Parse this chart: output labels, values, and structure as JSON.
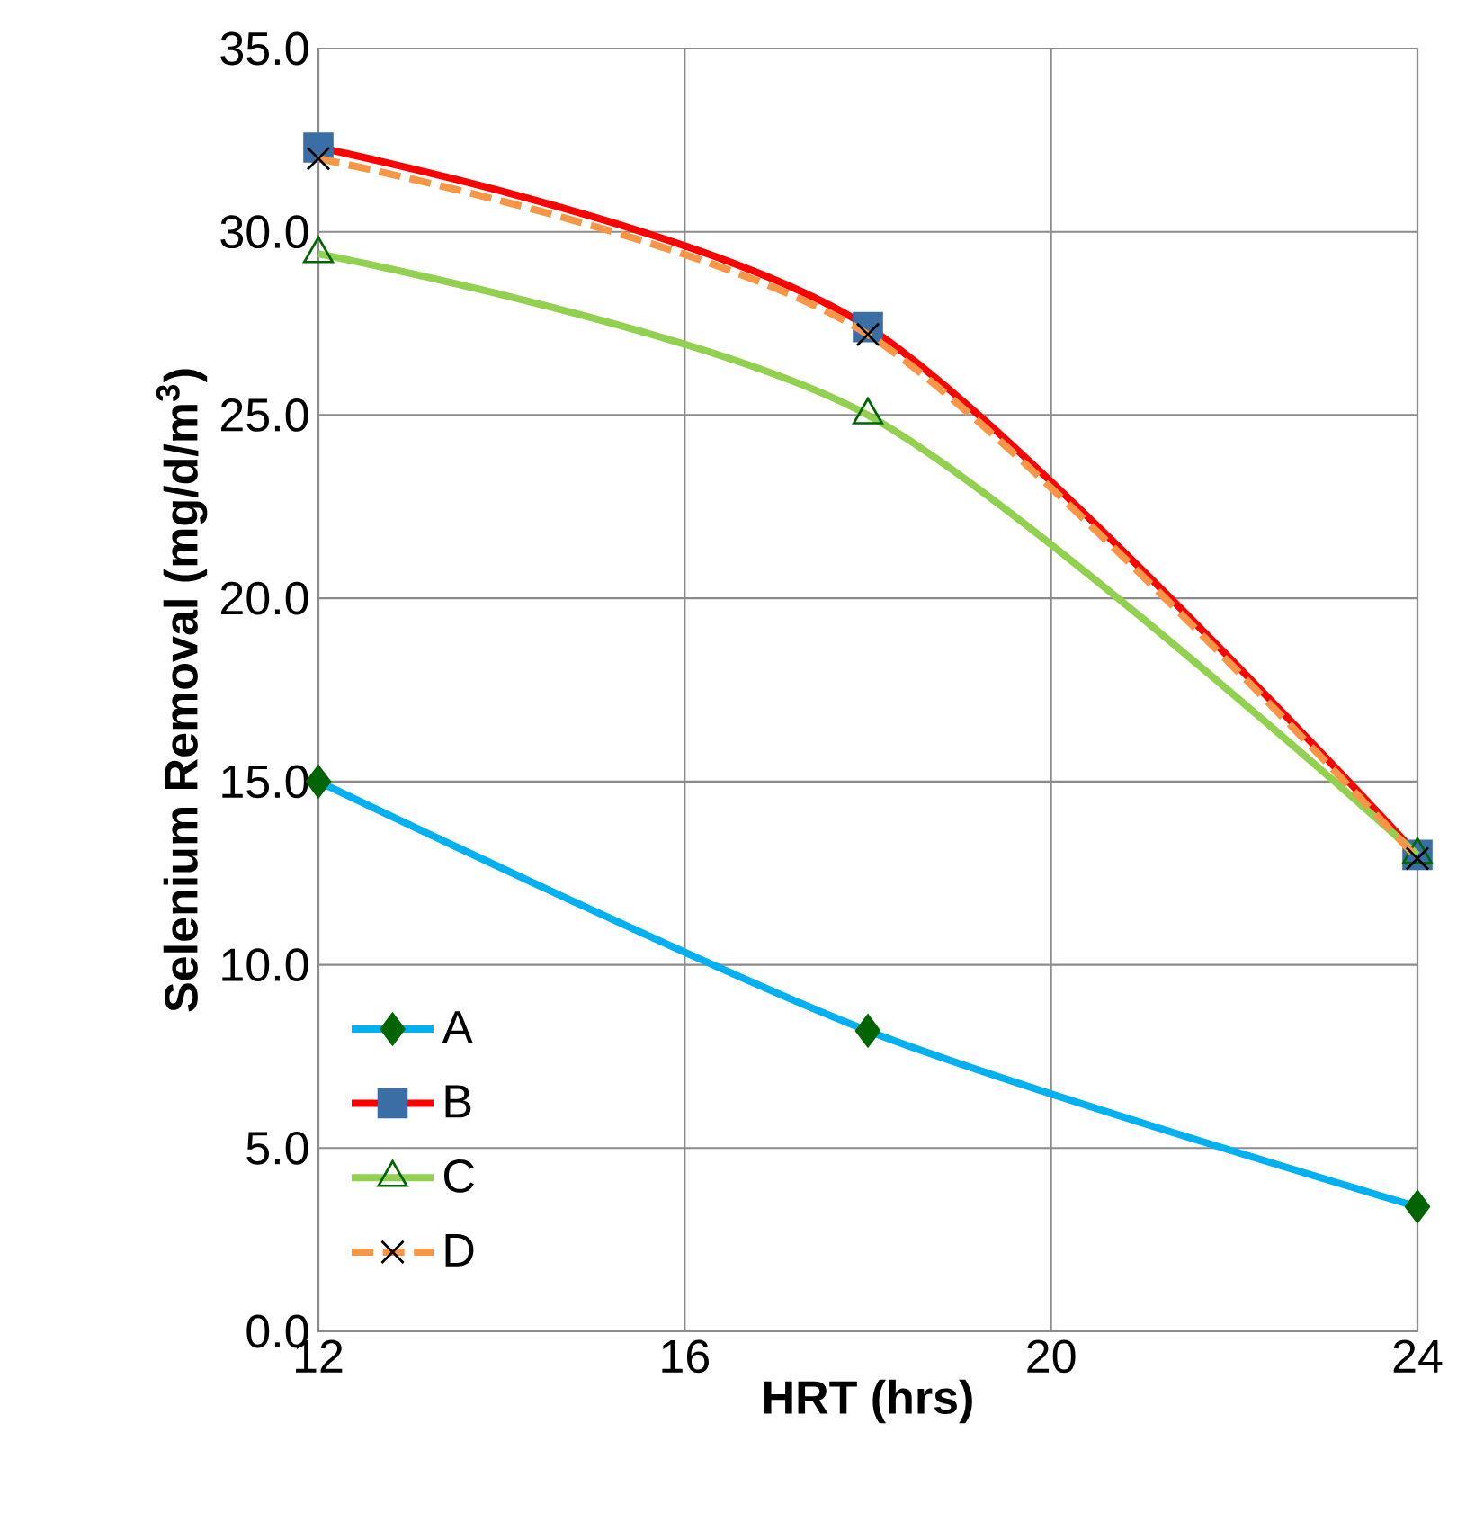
{
  "chart_data": {
    "type": "line",
    "xlabel": "HRT (hrs)",
    "ylabel": "Selenium Removal (mg/d/m$^{3}$)",
    "x": [
      12,
      18,
      24
    ],
    "series": [
      {
        "name": "A",
        "color": "#00b0f0",
        "colors": [
          "#006400",
          "#006400",
          "#006400"
        ],
        "marker": "diamond",
        "line_style": "solid",
        "values": [
          15.0,
          8.2,
          3.4
        ]
      },
      {
        "name": "B",
        "color": "#ff0000",
        "colors": [
          "#3a6ea5",
          "#3a6ea5",
          "#3a6ea5"
        ],
        "marker": "square",
        "line_style": "solid",
        "values": [
          32.3,
          27.4,
          13.0
        ]
      },
      {
        "name": "C",
        "color": "#92d050",
        "colors": [
          "#006400",
          "#006400",
          "#006400"
        ],
        "marker": "triangle",
        "line_style": "solid",
        "values": [
          29.4,
          25.0,
          13.0
        ]
      },
      {
        "name": "D",
        "color": "#f79646",
        "colors": [
          "#000000",
          "#000000",
          "#000000"
        ],
        "marker": "cross",
        "line_style": "dashed",
        "values": [
          32.0,
          27.2,
          12.9
        ]
      }
    ],
    "xlim": [
      12,
      24
    ],
    "xticks": [
      12,
      16,
      20,
      24
    ],
    "ylim": [
      0,
      35
    ],
    "yticks": [
      {
        "value": 0,
        "label": "0.0"
      },
      {
        "value": 5,
        "label": "5.0"
      },
      {
        "value": 10,
        "label": "10.0"
      },
      {
        "value": 15,
        "label": "15.0"
      },
      {
        "value": 20,
        "label": "20.0"
      },
      {
        "value": 25,
        "label": "25.0"
      },
      {
        "value": 30,
        "label": "30.0"
      },
      {
        "value": 35,
        "label": "35.0"
      }
    ],
    "grid": true,
    "legend": "bottom left"
  }
}
